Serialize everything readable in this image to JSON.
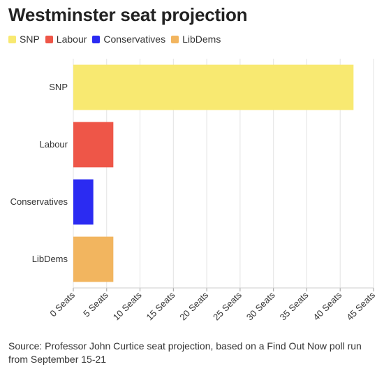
{
  "title": "Westminster seat projection",
  "legend": [
    {
      "label": "SNP",
      "color": "#f8e971"
    },
    {
      "label": "Labour",
      "color": "#ee5648"
    },
    {
      "label": "Conservatives",
      "color": "#2b2bf2"
    },
    {
      "label": "LibDems",
      "color": "#f2b55f"
    }
  ],
  "source": "Source: Professor John Curtice seat projection, based on a Find Out Now poll run from September 15-21",
  "chart_data": {
    "type": "bar",
    "orientation": "horizontal",
    "categories": [
      "SNP",
      "Labour",
      "Conservatives",
      "LibDems"
    ],
    "values": [
      42,
      6,
      3,
      6
    ],
    "colors": [
      "#f8e971",
      "#ee5648",
      "#2b2bf2",
      "#f2b55f"
    ],
    "xlim": [
      0,
      45
    ],
    "x_ticks": [
      0,
      5,
      10,
      15,
      20,
      25,
      30,
      35,
      40,
      45
    ],
    "x_tick_labels": [
      "0 Seats",
      "5 Seats",
      "10 Seats",
      "15 Seats",
      "20 Seats",
      "25 Seats",
      "30 Seats",
      "35 Seats",
      "40 Seats",
      "45 Seats"
    ],
    "grid": true,
    "legend_position": "top-left"
  }
}
